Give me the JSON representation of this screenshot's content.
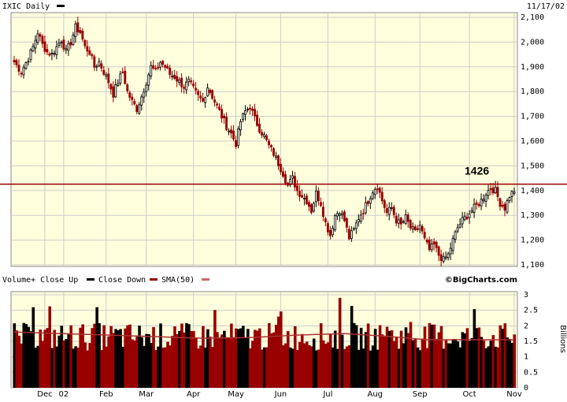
{
  "chart_data": [
    {
      "type": "candlestick",
      "title": "IXIC Daily",
      "date": "11/17/02",
      "ylim": [
        1100,
        2100
      ],
      "yticks": [
        "1,100",
        "1,200",
        "1,300",
        "1,400",
        "1,500",
        "1,600",
        "1,700",
        "1,800",
        "1,900",
        "2,000",
        "2,100"
      ],
      "xticks": [
        "Dec",
        "02",
        "Feb",
        "Mar",
        "Apr",
        "May",
        "Jun",
        "Jul",
        "Aug",
        "Sep",
        "Oct",
        "Nov"
      ],
      "reference_line": {
        "value": 1426,
        "label": "1426",
        "color": "#990000"
      },
      "grid": true,
      "colors": {
        "up": "#000000",
        "down": "#990000",
        "background": "#ffffdd"
      },
      "close_knots": [
        [
          0,
          1920
        ],
        [
          3,
          1880
        ],
        [
          6,
          1935
        ],
        [
          8,
          1980
        ],
        [
          10,
          2040
        ],
        [
          12,
          1990
        ],
        [
          14,
          1960
        ],
        [
          16,
          1950
        ],
        [
          18,
          1980
        ],
        [
          20,
          2010
        ],
        [
          22,
          1960
        ],
        [
          24,
          2000
        ],
        [
          26,
          2060
        ],
        [
          28,
          2040
        ],
        [
          30,
          1980
        ],
        [
          32,
          1960
        ],
        [
          34,
          1900
        ],
        [
          36,
          1920
        ],
        [
          38,
          1880
        ],
        [
          40,
          1840
        ],
        [
          42,
          1790
        ],
        [
          44,
          1840
        ],
        [
          46,
          1880
        ],
        [
          48,
          1800
        ],
        [
          50,
          1760
        ],
        [
          52,
          1730
        ],
        [
          54,
          1780
        ],
        [
          56,
          1840
        ],
        [
          58,
          1900
        ],
        [
          60,
          1880
        ],
        [
          62,
          1920
        ],
        [
          64,
          1900
        ],
        [
          66,
          1870
        ],
        [
          68,
          1860
        ],
        [
          70,
          1840
        ],
        [
          72,
          1820
        ],
        [
          74,
          1840
        ],
        [
          76,
          1810
        ],
        [
          78,
          1780
        ],
        [
          80,
          1760
        ],
        [
          82,
          1820
        ],
        [
          84,
          1780
        ],
        [
          86,
          1740
        ],
        [
          88,
          1700
        ],
        [
          90,
          1660
        ],
        [
          92,
          1630
        ],
        [
          94,
          1590
        ],
        [
          96,
          1680
        ],
        [
          98,
          1720
        ],
        [
          100,
          1740
        ],
        [
          102,
          1690
        ],
        [
          104,
          1650
        ],
        [
          106,
          1620
        ],
        [
          108,
          1580
        ],
        [
          110,
          1550
        ],
        [
          112,
          1510
        ],
        [
          114,
          1470
        ],
        [
          116,
          1420
        ],
        [
          118,
          1450
        ],
        [
          120,
          1400
        ],
        [
          122,
          1380
        ],
        [
          124,
          1360
        ],
        [
          126,
          1320
        ],
        [
          128,
          1390
        ],
        [
          130,
          1350
        ],
        [
          132,
          1270
        ],
        [
          134,
          1220
        ],
        [
          136,
          1300
        ],
        [
          138,
          1320
        ],
        [
          140,
          1280
        ],
        [
          142,
          1210
        ],
        [
          144,
          1240
        ],
        [
          146,
          1290
        ],
        [
          148,
          1320
        ],
        [
          150,
          1360
        ],
        [
          152,
          1400
        ],
        [
          154,
          1420
        ],
        [
          156,
          1360
        ],
        [
          158,
          1310
        ],
        [
          160,
          1330
        ],
        [
          162,
          1280
        ],
        [
          164,
          1260
        ],
        [
          166,
          1290
        ],
        [
          168,
          1250
        ],
        [
          170,
          1230
        ],
        [
          172,
          1260
        ],
        [
          174,
          1200
        ],
        [
          176,
          1160
        ],
        [
          178,
          1180
        ],
        [
          180,
          1140
        ],
        [
          182,
          1120
        ],
        [
          184,
          1140
        ],
        [
          186,
          1200
        ],
        [
          188,
          1250
        ],
        [
          190,
          1280
        ],
        [
          192,
          1300
        ],
        [
          194,
          1320
        ],
        [
          196,
          1340
        ],
        [
          198,
          1360
        ],
        [
          200,
          1390
        ],
        [
          202,
          1410
        ],
        [
          204,
          1400
        ],
        [
          206,
          1350
        ],
        [
          208,
          1330
        ],
        [
          210,
          1380
        ],
        [
          212,
          1400
        ]
      ],
      "volume": {
        "label": "Volume+ Close Up",
        "legend": [
          "Close Down",
          "SMA(50)"
        ],
        "unit": "Billions",
        "ylim": [
          0,
          3
        ],
        "yticks": [
          "0",
          "0.5",
          "1",
          "1.5",
          "2",
          "2.5",
          "3"
        ],
        "sma_knots": [
          [
            0,
            1.8
          ],
          [
            20,
            1.75
          ],
          [
            40,
            1.7
          ],
          [
            60,
            1.65
          ],
          [
            80,
            1.6
          ],
          [
            100,
            1.62
          ],
          [
            120,
            1.7
          ],
          [
            140,
            1.75
          ],
          [
            160,
            1.65
          ],
          [
            175,
            1.55
          ],
          [
            190,
            1.55
          ],
          [
            212,
            1.55
          ]
        ]
      }
    }
  ],
  "footer": {
    "credit": "©BigCharts.com"
  }
}
